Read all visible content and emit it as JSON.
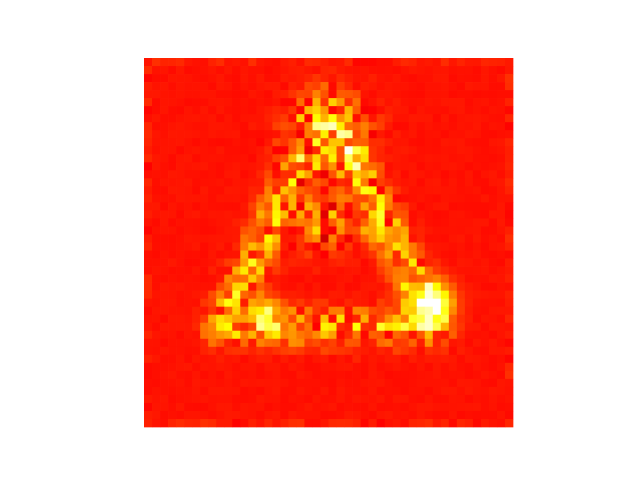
{
  "chart_data": {
    "type": "heatmap",
    "title": "",
    "xlabel": "",
    "ylabel": "",
    "axes_visible": false,
    "grid": false,
    "legend": "none",
    "colormap": "hot",
    "colormap_stops": [
      "#000000",
      "#ff0000",
      "#ffff00",
      "#ffffff"
    ],
    "grid_size": [
      46,
      46
    ],
    "value_range": [
      0,
      1
    ],
    "background_level": 0.4,
    "features": [
      {
        "shape": "triangle-outline",
        "vertices": [
          [
            0.5,
            0.12
          ],
          [
            0.21,
            0.73
          ],
          [
            0.79,
            0.73
          ]
        ],
        "strength": 0.18,
        "speckle": 0.22
      },
      {
        "shape": "blob",
        "center": [
          0.5,
          0.22
        ],
        "radius": 0.11,
        "strength": 0.12,
        "speckle": 0.28
      },
      {
        "shape": "blob",
        "center": [
          0.48,
          0.44
        ],
        "radius": 0.08,
        "strength": 0.1,
        "speckle": 0.26
      },
      {
        "shape": "hotspot",
        "center": [
          0.775,
          0.665
        ],
        "radius": 0.055,
        "peak": 1.0
      },
      {
        "shape": "hotspot",
        "center": [
          0.33,
          0.69
        ],
        "radius": 0.04,
        "peak": 0.72
      },
      {
        "shape": "hotspot",
        "center": [
          0.62,
          0.47
        ],
        "radius": 0.03,
        "peak": 0.62
      }
    ]
  }
}
